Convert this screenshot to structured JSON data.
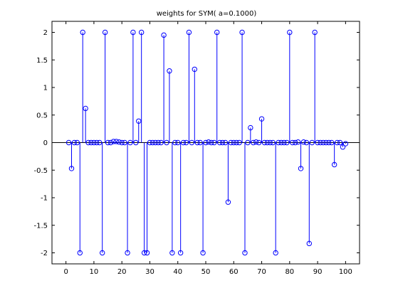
{
  "chart_data": {
    "type": "stem",
    "title": "weights for SYM( a=0.1000)",
    "xlabel": "",
    "ylabel": "",
    "xlim": [
      -5,
      105
    ],
    "ylim": [
      -2.2,
      2.2
    ],
    "xticks": [
      0,
      10,
      20,
      30,
      40,
      50,
      60,
      70,
      80,
      90,
      100
    ],
    "yticks": [
      2,
      1.5,
      1,
      0.5,
      0,
      -0.5,
      -1,
      -1.5,
      -2
    ],
    "ytick_labels": [
      "2",
      "1.5",
      "1",
      "0.5",
      "0",
      "-0.5",
      "-1",
      "-1.5",
      "-2"
    ],
    "grid": false,
    "color": "#0000ff",
    "marker": "circle",
    "series": [
      {
        "x": [
          1,
          2,
          3,
          4,
          5,
          6,
          7,
          8,
          9,
          10,
          11,
          12,
          13,
          14,
          15,
          16,
          17,
          18,
          19,
          20,
          21,
          22,
          23,
          24,
          25,
          26,
          27,
          28,
          29,
          30,
          31,
          32,
          33,
          34,
          35,
          36,
          37,
          38,
          39,
          40,
          41,
          42,
          43,
          44,
          45,
          46,
          47,
          48,
          49,
          50,
          51,
          52,
          53,
          54,
          55,
          56,
          57,
          58,
          59,
          60,
          61,
          62,
          63,
          64,
          65,
          66,
          67,
          68,
          69,
          70,
          71,
          72,
          73,
          74,
          75,
          76,
          77,
          78,
          79,
          80,
          81,
          82,
          83,
          84,
          85,
          86,
          87,
          88,
          89,
          90,
          91,
          92,
          93,
          94,
          95,
          96,
          97,
          98,
          99,
          100
        ],
        "values": [
          0,
          -0.47,
          0,
          0,
          -2,
          2,
          0.62,
          0,
          0,
          0,
          0,
          0,
          -2,
          2,
          0,
          0,
          0.02,
          0.02,
          0.01,
          0,
          0,
          -2,
          0,
          2,
          0,
          0.39,
          2,
          -2,
          -2,
          0,
          0,
          0,
          0,
          0,
          1.95,
          0,
          1.3,
          -2,
          0,
          0,
          -2,
          0,
          0,
          2,
          0,
          1.33,
          0,
          0,
          -2,
          0,
          0.01,
          0,
          0,
          2,
          0,
          0,
          0,
          -1.08,
          0,
          0,
          0,
          0,
          2,
          -2,
          0,
          0.27,
          0,
          0.01,
          0,
          0.43,
          0,
          0,
          0,
          0,
          -2,
          0,
          0,
          0,
          0,
          2,
          0,
          0,
          0.01,
          -0.47,
          0.01,
          0,
          -1.83,
          0,
          2,
          0,
          0,
          0,
          0,
          0,
          0,
          -0.4,
          0,
          0,
          -0.08,
          -0.02
        ]
      }
    ]
  }
}
